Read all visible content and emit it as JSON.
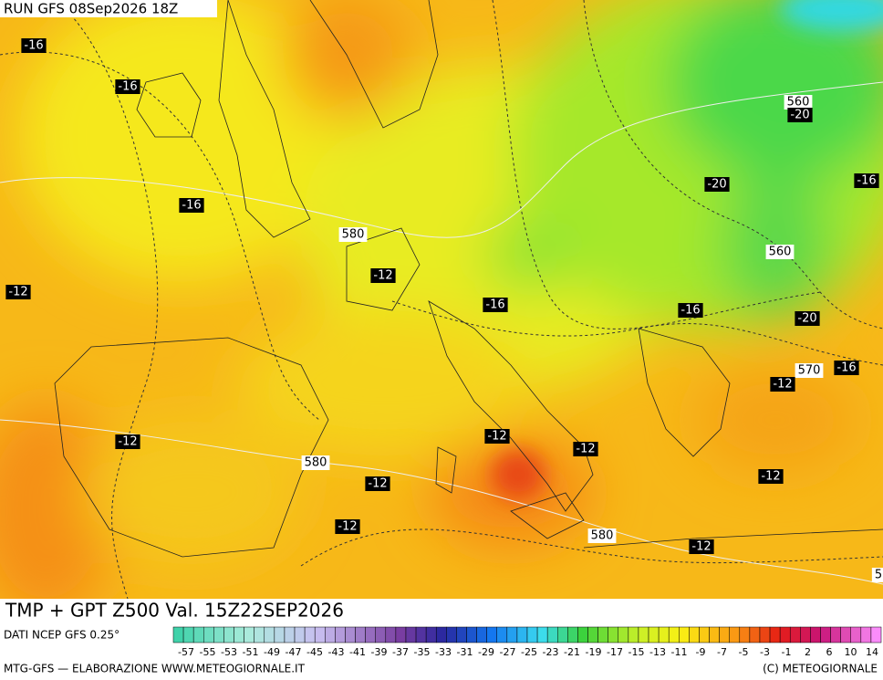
{
  "header": {
    "run": "RUN GFS 08Sep2026 18Z"
  },
  "map": {
    "labels": [
      "-16",
      "-16",
      "-16",
      "-12",
      "580",
      "-12",
      "-16",
      "560",
      "-20",
      "-20",
      "-16",
      "560",
      "-16",
      "-20",
      "570",
      "-16",
      "-12",
      "-12",
      "-12",
      "-12",
      "580",
      "-12",
      "-12",
      "-12",
      "580",
      "-12",
      "5"
    ]
  },
  "footer": {
    "title": "TMP + GPT Z500 Val. 15Z22SEP2026",
    "source": "DATI NCEP GFS 0.25°",
    "credit": "MTG-GFS — ELABORAZIONE WWW.METEOGIORNALE.IT",
    "copyright": "(C) METEOGIORNALE"
  },
  "colorbar": {
    "labels": [
      "-57",
      "-55",
      "-53",
      "-51",
      "-49",
      "-47",
      "-45",
      "-43",
      "-41",
      "-39",
      "-37",
      "-35",
      "-33",
      "-31",
      "-29",
      "-27",
      "-25",
      "-23",
      "-21",
      "-19",
      "-17",
      "-15",
      "-13",
      "-11",
      "-9",
      "-7",
      "-5",
      "-3",
      "-1",
      "2",
      "6",
      "10",
      "14"
    ]
  }
}
